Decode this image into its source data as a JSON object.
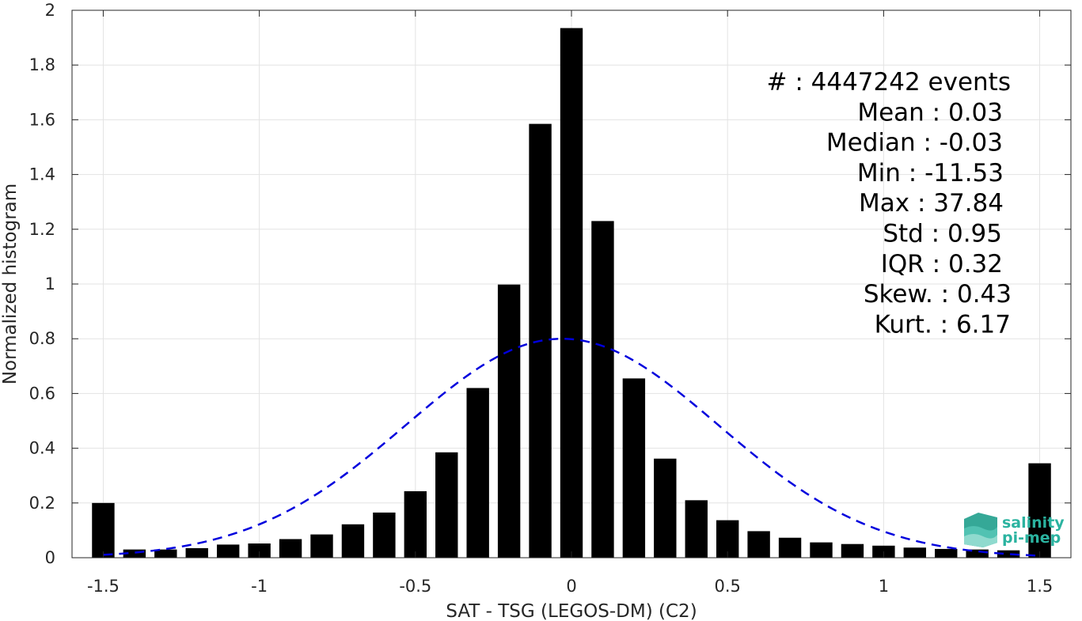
{
  "chart_data": {
    "type": "bar",
    "title": "",
    "xlabel": "SAT - TSG (LEGOS-DM) (C2)",
    "ylabel": "Normalized histogram",
    "xlim": [
      -1.6,
      1.6
    ],
    "ylim": [
      0,
      2
    ],
    "grid": true,
    "xticks": [
      -1.5,
      -1,
      -0.5,
      0,
      0.5,
      1,
      1.5
    ],
    "xtick_labels": [
      "-1.5",
      "-1",
      "-0.5",
      "0",
      "0.5",
      "1",
      "1.5"
    ],
    "yticks": [
      0,
      0.2,
      0.4,
      0.6,
      0.8,
      1,
      1.2,
      1.4,
      1.6,
      1.8,
      2
    ],
    "ytick_labels": [
      "0",
      "0.2",
      "0.4",
      "0.6",
      "0.8",
      "1",
      "1.2",
      "1.4",
      "1.6",
      "1.8",
      "2"
    ],
    "bin_width": 0.1,
    "bar_color": "#000000",
    "x": [
      -1.5,
      -1.4,
      -1.3,
      -1.2,
      -1.1,
      -1.0,
      -0.9,
      -0.8,
      -0.7,
      -0.6,
      -0.5,
      -0.4,
      -0.3,
      -0.2,
      -0.1,
      0.0,
      0.1,
      0.2,
      0.3,
      0.4,
      0.5,
      0.6,
      0.7,
      0.8,
      0.9,
      1.0,
      1.1,
      1.2,
      1.3,
      1.4,
      1.5
    ],
    "values": [
      0.2,
      0.03,
      0.03,
      0.035,
      0.048,
      0.052,
      0.068,
      0.085,
      0.122,
      0.165,
      0.243,
      0.385,
      0.62,
      0.998,
      1.585,
      1.935,
      1.23,
      0.655,
      0.362,
      0.21,
      0.137,
      0.097,
      0.073,
      0.056,
      0.05,
      0.044,
      0.037,
      0.032,
      0.03,
      0.027,
      0.345
    ],
    "fit_curve": {
      "style": "dashed",
      "color": "#0000dd",
      "mean": -0.03,
      "std": 0.5,
      "peak": 0.8,
      "x_range": [
        -1.5,
        1.5
      ]
    }
  },
  "stats": {
    "lines": [
      "#  : 4447242 events",
      "Mean : 0.03",
      "Median : -0.03",
      "Min : -11.53",
      "Max : 37.84",
      "Std : 0.95",
      "IQR : 0.32",
      "Skew. : 0.43",
      "Kurt. : 6.17"
    ]
  },
  "logo": {
    "line1": "salinity",
    "line2": "pi-mep",
    "color": "#2bb3a0"
  }
}
